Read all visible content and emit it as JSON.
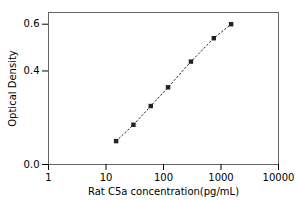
{
  "chart_data": {
    "type": "line",
    "xlabel": "Rat C5a concentration(pg/mL)",
    "ylabel": "Optical Density",
    "x": [
      15,
      30,
      60,
      120,
      300,
      750,
      1500
    ],
    "values": [
      0.1,
      0.17,
      0.25,
      0.33,
      0.44,
      0.54,
      0.6
    ],
    "log": "x",
    "xlim": [
      1,
      10000
    ],
    "ylim": [
      0,
      0.65
    ],
    "xticks": [
      1,
      10,
      100,
      1000,
      10000
    ],
    "yticks": [
      {
        "value": 0.0,
        "label": "0.0"
      },
      0.4,
      0.6
    ],
    "color": "#222222",
    "marker": "square",
    "line_style": "dotted",
    "grid": false
  }
}
